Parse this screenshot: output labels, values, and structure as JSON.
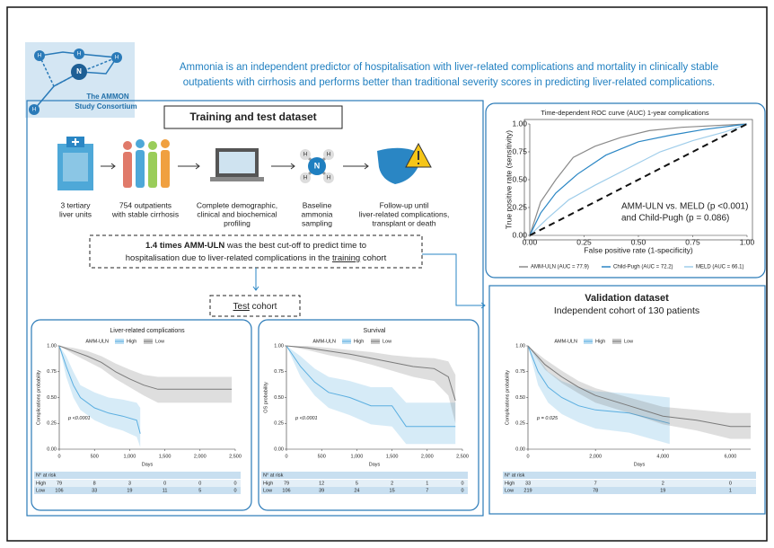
{
  "header": {
    "line1": "Ammonia is an independent predictor of hospitalisation with liver-related complications and mortality in clinically stable",
    "line2": "outpatients with cirrhosis and performs better than traditional severity scores in predicting liver-related complications."
  },
  "logo": {
    "line1": "The AMMON",
    "line2": "Study Consortium"
  },
  "icons": {
    "hydrogen": "H",
    "nitrogen": "N"
  },
  "training": {
    "title": "Training and test dataset",
    "steps": [
      [
        "3 tertiary",
        "liver units"
      ],
      [
        "754 outpatients",
        "with stable cirrhosis"
      ],
      [
        "Complete demographic,",
        "clinical and biochemical",
        "profiling"
      ],
      [
        "Baseline",
        "ammonia",
        "sampling"
      ],
      [
        "Follow-up until",
        "liver-related complications,",
        "transplant or death"
      ]
    ],
    "cutoff": {
      "bold": "1.4 times AMM-ULN",
      "rest1": " was the best cut-off to predict time to",
      "line2a": "hospitalisation due to liver-related complications in the ",
      "underlined": "training",
      "line2b": " cohort"
    },
    "test": {
      "underlined": "Test",
      "rest": " cohort"
    }
  },
  "validation": {
    "title": "Validation dataset",
    "subtitle": "Independent cohort of 130 patients"
  },
  "chart_data": [
    {
      "type": "km",
      "title": "Liver-related complications",
      "xlabel": "Days",
      "ylabel": "Complications probability",
      "legend_title": "AMM-ULN",
      "annotation": "p <0.0001",
      "xlim": [
        0,
        2500
      ],
      "xticks": [
        0,
        500,
        {
          "value": 1000,
          "label": "1,000"
        },
        {
          "value": 1500,
          "label": "1,500"
        },
        {
          "value": 2000,
          "label": "2,000"
        },
        {
          "value": 2500,
          "label": "2,500"
        }
      ],
      "ylim": [
        0,
        1
      ],
      "yticks": [
        {
          "value": 0,
          "label": "0.00"
        },
        {
          "value": 0.25,
          "label": "0.25"
        },
        {
          "value": 0.5,
          "label": "0.50"
        },
        {
          "value": 0.75,
          "label": "0.75"
        },
        {
          "value": 1,
          "label": "1.00"
        }
      ],
      "series": [
        {
          "name": "High",
          "color": "#5aaee0",
          "x": [
            0,
            100,
            200,
            300,
            500,
            700,
            900,
            1100,
            1150
          ],
          "values": [
            1,
            0.8,
            0.62,
            0.5,
            0.4,
            0.35,
            0.32,
            0.28,
            0.15
          ],
          "lower": [
            1,
            0.7,
            0.5,
            0.38,
            0.28,
            0.22,
            0.18,
            0.12,
            0.02
          ],
          "upper": [
            1,
            0.9,
            0.75,
            0.62,
            0.55,
            0.5,
            0.48,
            0.45,
            0.4
          ]
        },
        {
          "name": "Low",
          "color": "#7a7a7a",
          "x": [
            0,
            200,
            400,
            600,
            800,
            1000,
            1200,
            1400,
            2450
          ],
          "values": [
            1,
            0.95,
            0.9,
            0.84,
            0.75,
            0.68,
            0.62,
            0.58,
            0.58
          ],
          "lower": [
            1,
            0.92,
            0.85,
            0.78,
            0.68,
            0.6,
            0.52,
            0.45,
            0.45
          ],
          "upper": [
            1,
            0.98,
            0.95,
            0.9,
            0.83,
            0.77,
            0.72,
            0.7,
            0.7
          ]
        }
      ],
      "risk_table": {
        "title": "N° at risk",
        "rows": [
          [
            79,
            8,
            3,
            0,
            0,
            0
          ],
          [
            106,
            33,
            19,
            11,
            5,
            0
          ]
        ]
      }
    },
    {
      "type": "km",
      "title": "Survival",
      "xlabel": "Days",
      "ylabel": "OS probability",
      "legend_title": "AMM-ULN",
      "annotation": "p <0.0001",
      "xlim": [
        0,
        2500
      ],
      "xticks": [
        0,
        500,
        {
          "value": 1000,
          "label": "1,000"
        },
        {
          "value": 1500,
          "label": "1,500"
        },
        {
          "value": 2000,
          "label": "2,000"
        },
        {
          "value": 2500,
          "label": "2,500"
        }
      ],
      "ylim": [
        0,
        1
      ],
      "yticks": [
        {
          "value": 0,
          "label": "0.00"
        },
        {
          "value": 0.25,
          "label": "0.25"
        },
        {
          "value": 0.5,
          "label": "0.50"
        },
        {
          "value": 0.75,
          "label": "0.75"
        },
        {
          "value": 1,
          "label": "1.00"
        }
      ],
      "series": [
        {
          "name": "High",
          "color": "#5aaee0",
          "x": [
            0,
            200,
            400,
            600,
            900,
            1200,
            1500,
            1700,
            2300,
            2400
          ],
          "values": [
            1,
            0.8,
            0.65,
            0.55,
            0.5,
            0.42,
            0.42,
            0.22,
            0.22,
            0.22
          ],
          "lower": [
            1,
            0.7,
            0.52,
            0.4,
            0.33,
            0.24,
            0.22,
            0.05,
            0.05,
            0.05
          ],
          "upper": [
            1,
            0.9,
            0.78,
            0.7,
            0.66,
            0.6,
            0.6,
            0.45,
            0.45,
            0.45
          ]
        },
        {
          "name": "Low",
          "color": "#7a7a7a",
          "x": [
            0,
            300,
            600,
            900,
            1200,
            1500,
            1800,
            2100,
            2300,
            2400
          ],
          "values": [
            1,
            0.98,
            0.95,
            0.92,
            0.88,
            0.84,
            0.8,
            0.78,
            0.7,
            0.47
          ],
          "lower": [
            1,
            0.96,
            0.91,
            0.87,
            0.82,
            0.76,
            0.7,
            0.66,
            0.52,
            0.25
          ],
          "upper": [
            1,
            1,
            0.98,
            0.96,
            0.94,
            0.91,
            0.89,
            0.88,
            0.85,
            0.72
          ]
        }
      ],
      "risk_table": {
        "title": "N° at risk",
        "rows": [
          [
            79,
            12,
            5,
            2,
            1,
            0
          ],
          [
            106,
            39,
            24,
            15,
            7,
            0
          ]
        ]
      }
    },
    {
      "type": "km",
      "xlabel": "Days",
      "ylabel": "Complications probability",
      "legend_title": "AMM-ULN",
      "annotation": "p = 0.025",
      "xlim": [
        0,
        6600
      ],
      "xticks": [
        0,
        {
          "value": 2000,
          "label": "2,000"
        },
        {
          "value": 4000,
          "label": "4,000"
        },
        {
          "value": 6000,
          "label": "6,000"
        }
      ],
      "ylim": [
        0,
        1
      ],
      "yticks": [
        {
          "value": 0,
          "label": "0.00"
        },
        {
          "value": 0.25,
          "label": "0.25"
        },
        {
          "value": 0.5,
          "label": "0.50"
        },
        {
          "value": 0.75,
          "label": "0.75"
        },
        {
          "value": 1,
          "label": "1.00"
        }
      ],
      "series": [
        {
          "name": "High",
          "color": "#5aaee0",
          "x": [
            0,
            300,
            600,
            1000,
            1500,
            2000,
            3000,
            4200
          ],
          "values": [
            1,
            0.75,
            0.6,
            0.5,
            0.42,
            0.38,
            0.35,
            0.25
          ],
          "lower": [
            1,
            0.62,
            0.45,
            0.34,
            0.26,
            0.2,
            0.16,
            0.05
          ],
          "upper": [
            1,
            0.88,
            0.75,
            0.66,
            0.6,
            0.56,
            0.54,
            0.5
          ]
        },
        {
          "name": "Low",
          "color": "#7a7a7a",
          "x": [
            0,
            500,
            1000,
            1500,
            2000,
            3000,
            4000,
            5000,
            6000,
            6600
          ],
          "values": [
            1,
            0.82,
            0.7,
            0.6,
            0.52,
            0.42,
            0.32,
            0.28,
            0.22,
            0.22
          ],
          "lower": [
            1,
            0.77,
            0.64,
            0.54,
            0.45,
            0.35,
            0.24,
            0.18,
            0.1,
            0.1
          ],
          "upper": [
            1,
            0.87,
            0.76,
            0.66,
            0.59,
            0.5,
            0.41,
            0.38,
            0.35,
            0.35
          ]
        }
      ],
      "risk_table": {
        "title": "N° at risk",
        "rows": [
          [
            33,
            7,
            2,
            0
          ],
          [
            219,
            78,
            19,
            1
          ]
        ]
      }
    },
    {
      "type": "roc",
      "title": "Time-dependent ROC curve (AUC) 1-year complications",
      "xlabel": "False positive rate (1-specificity)",
      "ylabel": "True positive rate (sensitivity)",
      "annotation": [
        "AMM-ULN vs. MELD (p <0.001)",
        "and Child-Pugh (p = 0.086)"
      ],
      "xlim": [
        0,
        1
      ],
      "xticks": [
        {
          "value": 0,
          "label": "0.00"
        },
        {
          "value": 0.25,
          "label": "0.25"
        },
        {
          "value": 0.5,
          "label": "0.50"
        },
        {
          "value": 0.75,
          "label": "0.75"
        },
        {
          "value": 1,
          "label": "1.00"
        }
      ],
      "ylim": [
        0,
        1
      ],
      "yticks": [
        {
          "value": 0,
          "label": "0.00"
        },
        {
          "value": 0.25,
          "label": "0.25"
        },
        {
          "value": 0.5,
          "label": "0.50"
        },
        {
          "value": 0.75,
          "label": "0.75"
        },
        {
          "value": 1,
          "label": "1.00"
        }
      ],
      "series": [
        {
          "name": "AMM-ULN (AUC = 77.9)",
          "color": "#8a8a8a",
          "x": [
            0,
            0.05,
            0.12,
            0.2,
            0.3,
            0.42,
            0.55,
            0.7,
            1
          ],
          "values": [
            0,
            0.3,
            0.5,
            0.7,
            0.8,
            0.88,
            0.94,
            0.97,
            1
          ]
        },
        {
          "name": "Child-Pugh (AUC = 72.2)",
          "color": "#2a86c4",
          "x": [
            0,
            0.05,
            0.12,
            0.22,
            0.35,
            0.5,
            0.65,
            0.8,
            1
          ],
          "values": [
            0,
            0.2,
            0.38,
            0.55,
            0.72,
            0.84,
            0.9,
            0.95,
            1
          ]
        },
        {
          "name": "MELD (AUC = 66.1)",
          "color": "#9fcdea",
          "x": [
            0,
            0.08,
            0.18,
            0.3,
            0.45,
            0.6,
            0.75,
            0.9,
            1
          ],
          "values": [
            0,
            0.15,
            0.32,
            0.45,
            0.6,
            0.75,
            0.85,
            0.93,
            1
          ]
        }
      ]
    }
  ]
}
